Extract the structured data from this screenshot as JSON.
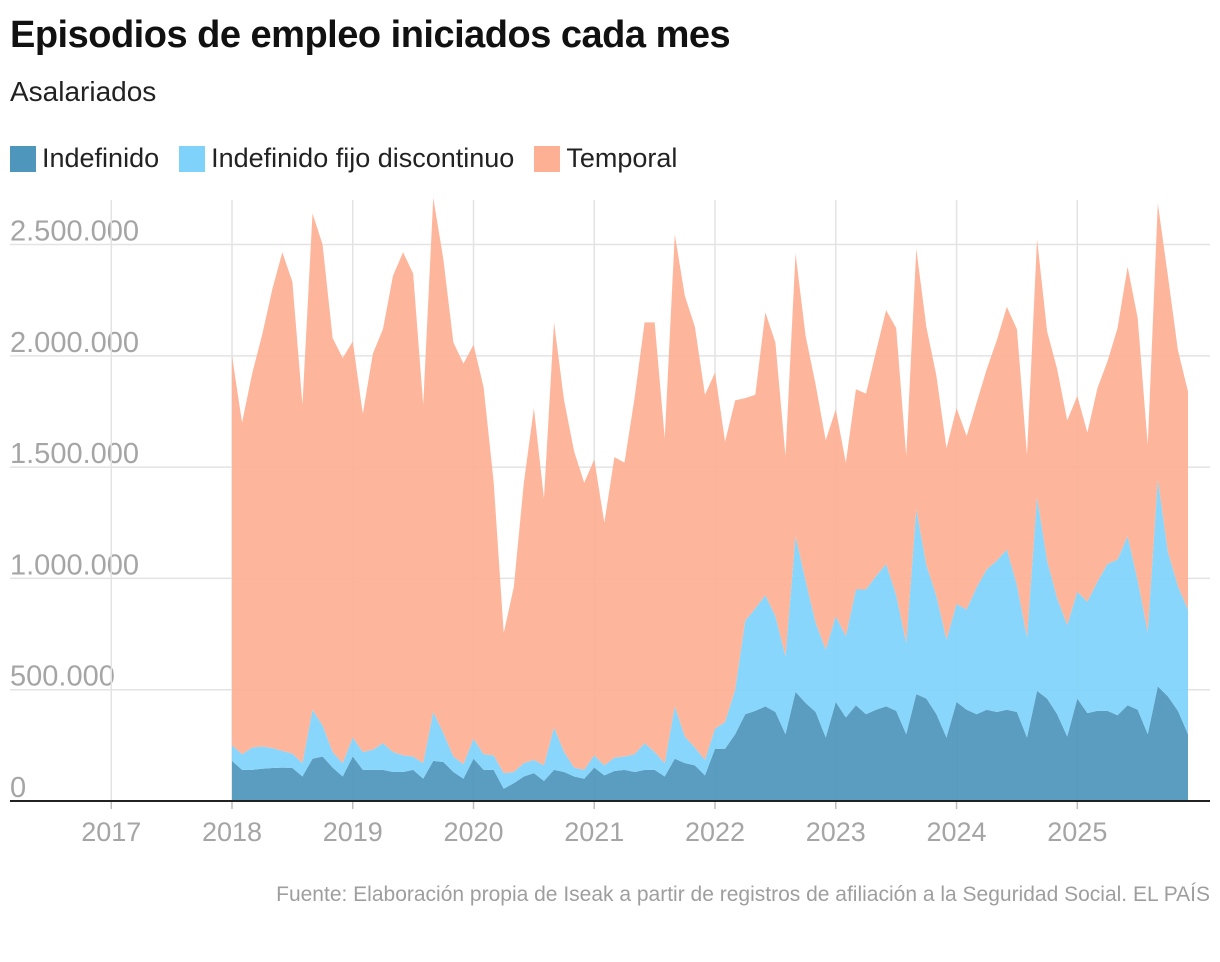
{
  "header": {
    "title": "Episodios de empleo iniciados cada mes",
    "subtitle": "Asalariados"
  },
  "legend": [
    {
      "label": "Indefinido",
      "color": "#4e96bb"
    },
    {
      "label": "Indefinido fijo discontinuo",
      "color": "#7fd3fb"
    },
    {
      "label": "Temporal",
      "color": "#fdb094"
    }
  ],
  "footer": {
    "source": "Fuente: Elaboración propia de Iseak a partir de registros de afiliación a la Seguridad Social. EL PAÍS"
  },
  "chart_data": {
    "type": "area",
    "stacked": true,
    "x_start": "2018-01",
    "x_end": "2025-12",
    "xlim": [
      "2017-01",
      "2025-12"
    ],
    "ylim": [
      0,
      2700000
    ],
    "x_tick_labels": [
      "2017",
      "2018",
      "2019",
      "2020",
      "2021",
      "2022",
      "2023",
      "2024",
      "2025"
    ],
    "y_tick_labels": [
      "0",
      "500.000",
      "1.000.000",
      "1.500.000",
      "2.000.000",
      "2.500.000"
    ],
    "y_ticks": [
      0,
      500000,
      1000000,
      1500000,
      2000000,
      2500000
    ],
    "grid": true,
    "legend_position": "top-left",
    "series": [
      {
        "name": "Indefinido",
        "color": "#4e96bb",
        "values": [
          180000,
          140000,
          140000,
          145000,
          148000,
          150000,
          148000,
          110000,
          190000,
          200000,
          150000,
          110000,
          200000,
          140000,
          140000,
          140000,
          130000,
          130000,
          140000,
          100000,
          180000,
          175000,
          130000,
          100000,
          190000,
          140000,
          140000,
          55000,
          80000,
          110000,
          125000,
          90000,
          140000,
          130000,
          110000,
          100000,
          150000,
          115000,
          135000,
          140000,
          130000,
          140000,
          140000,
          110000,
          190000,
          170000,
          160000,
          115000,
          235000,
          235000,
          300000,
          390000,
          405000,
          425000,
          400000,
          300000,
          490000,
          440000,
          400000,
          285000,
          445000,
          375000,
          430000,
          390000,
          410000,
          425000,
          405000,
          300000,
          480000,
          460000,
          390000,
          285000,
          445000,
          410000,
          390000,
          410000,
          400000,
          410000,
          400000,
          285000,
          495000,
          460000,
          390000,
          290000,
          460000,
          395000,
          405000,
          405000,
          385000,
          430000,
          410000,
          300000,
          515000,
          470000,
          405000,
          300000
        ]
      },
      {
        "name": "Indefinido fijo discontinuo",
        "color": "#7fd3fb",
        "values": [
          70000,
          70000,
          100000,
          100000,
          90000,
          75000,
          65000,
          60000,
          220000,
          140000,
          70000,
          60000,
          85000,
          80000,
          90000,
          120000,
          90000,
          75000,
          60000,
          70000,
          220000,
          130000,
          70000,
          65000,
          90000,
          70000,
          65000,
          70000,
          50000,
          60000,
          60000,
          70000,
          190000,
          90000,
          40000,
          40000,
          55000,
          45000,
          60000,
          60000,
          80000,
          120000,
          80000,
          60000,
          235000,
          120000,
          80000,
          70000,
          90000,
          120000,
          200000,
          420000,
          460000,
          500000,
          430000,
          350000,
          700000,
          550000,
          400000,
          395000,
          385000,
          365000,
          520000,
          560000,
          600000,
          640000,
          520000,
          410000,
          830000,
          600000,
          530000,
          440000,
          440000,
          450000,
          570000,
          630000,
          680000,
          720000,
          570000,
          450000,
          870000,
          620000,
          520000,
          500000,
          480000,
          500000,
          580000,
          660000,
          700000,
          760000,
          580000,
          460000,
          930000,
          650000,
          560000,
          560000
        ]
      },
      {
        "name": "Temporal",
        "color": "#fdb094",
        "values": [
          1750000,
          1490000,
          1680000,
          1850000,
          2060000,
          2240000,
          2120000,
          1610000,
          2230000,
          2160000,
          1860000,
          1820000,
          1780000,
          1520000,
          1780000,
          1860000,
          2140000,
          2260000,
          2170000,
          1610000,
          2310000,
          2130000,
          1860000,
          1800000,
          1770000,
          1650000,
          1230000,
          630000,
          830000,
          1260000,
          1580000,
          1200000,
          1820000,
          1580000,
          1420000,
          1290000,
          1330000,
          1090000,
          1350000,
          1320000,
          1600000,
          1890000,
          1930000,
          1460000,
          2120000,
          1980000,
          1890000,
          1640000,
          1600000,
          1260000,
          1300000,
          1000000,
          960000,
          1270000,
          1230000,
          900000,
          1270000,
          1100000,
          1070000,
          940000,
          930000,
          780000,
          900000,
          880000,
          1010000,
          1140000,
          1200000,
          840000,
          1170000,
          1070000,
          990000,
          860000,
          880000,
          780000,
          830000,
          900000,
          990000,
          1090000,
          1150000,
          820000,
          1160000,
          1030000,
          1030000,
          920000,
          880000,
          760000,
          870000,
          910000,
          1040000,
          1210000,
          1180000,
          840000,
          1240000,
          1240000,
          1060000,
          980000
        ]
      }
    ]
  }
}
